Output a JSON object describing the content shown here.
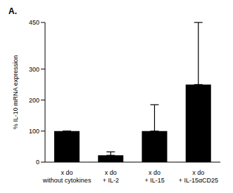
{
  "chart_data": {
    "type": "bar",
    "title": "A.",
    "y_label": "% IL-10 mRNA expression",
    "categories": [
      "x do without cytokines",
      "x do + IL-2",
      "x do + IL-15",
      "x do + IL-15αCD25"
    ],
    "values": [
      100,
      22,
      100,
      250
    ],
    "errors_upper": [
      0,
      11,
      85,
      200
    ],
    "color": "#000000",
    "ylim": [
      0,
      450
    ],
    "yticks": [
      0,
      100,
      200,
      300,
      450
    ],
    "grid": false
  }
}
